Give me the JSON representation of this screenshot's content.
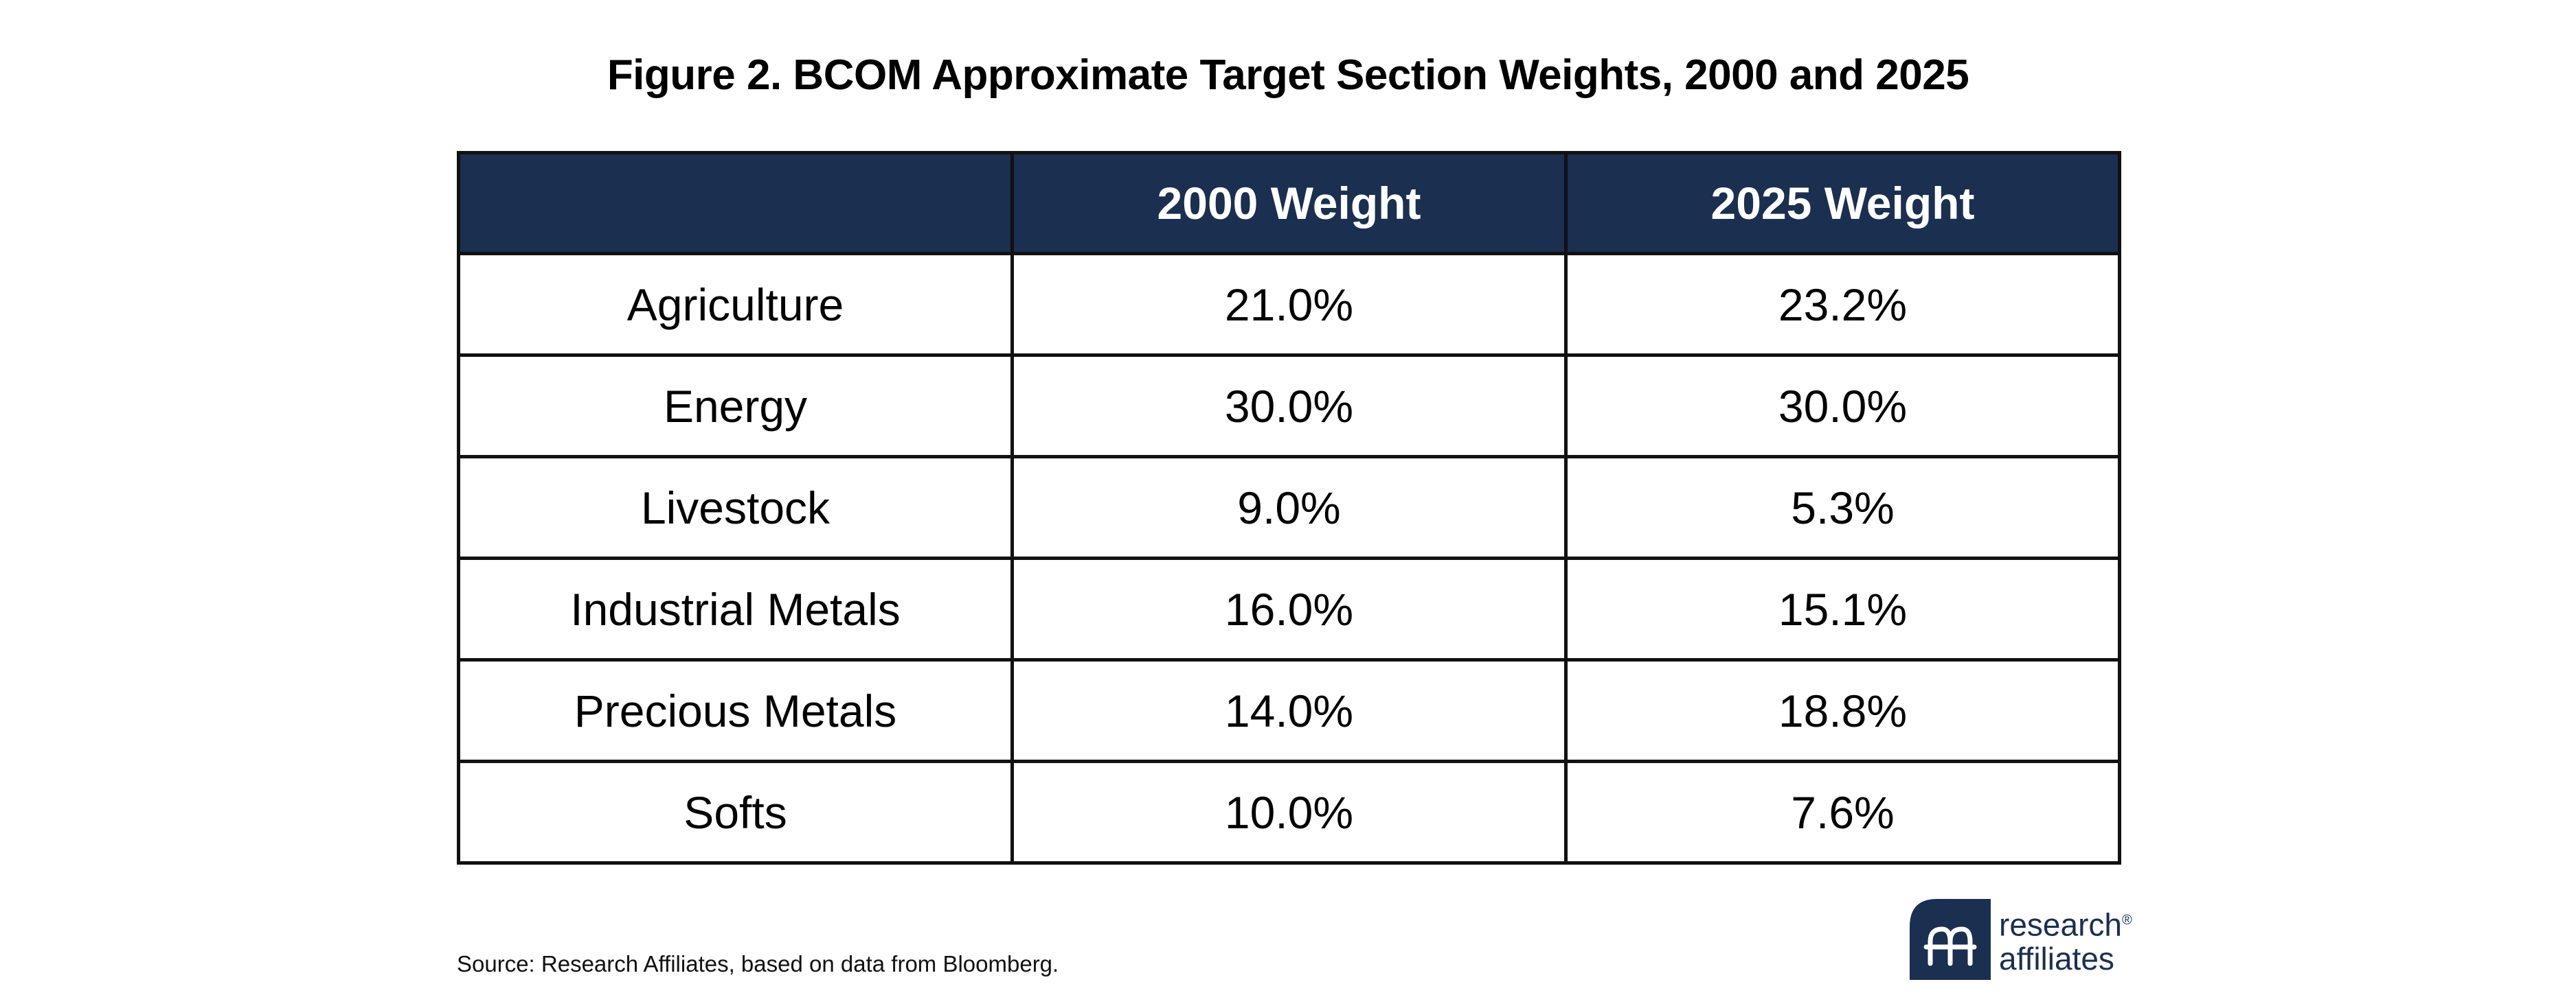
{
  "colors": {
    "header_bg": "#1b2f50",
    "header_text": "#ffffff",
    "border": "#111111",
    "brand_navy": "#1b2f50"
  },
  "chart_data": {
    "type": "table",
    "title": "Figure 2. BCOM Approximate Target Section Weights, 2000 and 2025",
    "columns": [
      "",
      "2000 Weight",
      "2025 Weight"
    ],
    "rows": [
      [
        "Agriculture",
        "21.0%",
        "23.2%"
      ],
      [
        "Energy",
        "30.0%",
        "30.0%"
      ],
      [
        "Livestock",
        "9.0%",
        "5.3%"
      ],
      [
        "Industrial Metals",
        "16.0%",
        "15.1%"
      ],
      [
        "Precious Metals",
        "14.0%",
        "18.8%"
      ],
      [
        "Softs",
        "10.0%",
        "7.6%"
      ]
    ],
    "series": [
      {
        "name": "2000 Weight",
        "values": [
          21.0,
          30.0,
          9.0,
          16.0,
          14.0,
          10.0
        ]
      },
      {
        "name": "2025 Weight",
        "values": [
          23.2,
          30.0,
          5.3,
          15.1,
          18.8,
          7.6
        ]
      }
    ],
    "categories": [
      "Agriculture",
      "Energy",
      "Livestock",
      "Industrial Metals",
      "Precious Metals",
      "Softs"
    ],
    "unit": "%"
  },
  "footer": {
    "source": "Source: Research Affiliates, based on data from Bloomberg."
  },
  "logo": {
    "line1": "research",
    "line2": "affiliates",
    "icon": "research-affiliates-logo-icon"
  }
}
